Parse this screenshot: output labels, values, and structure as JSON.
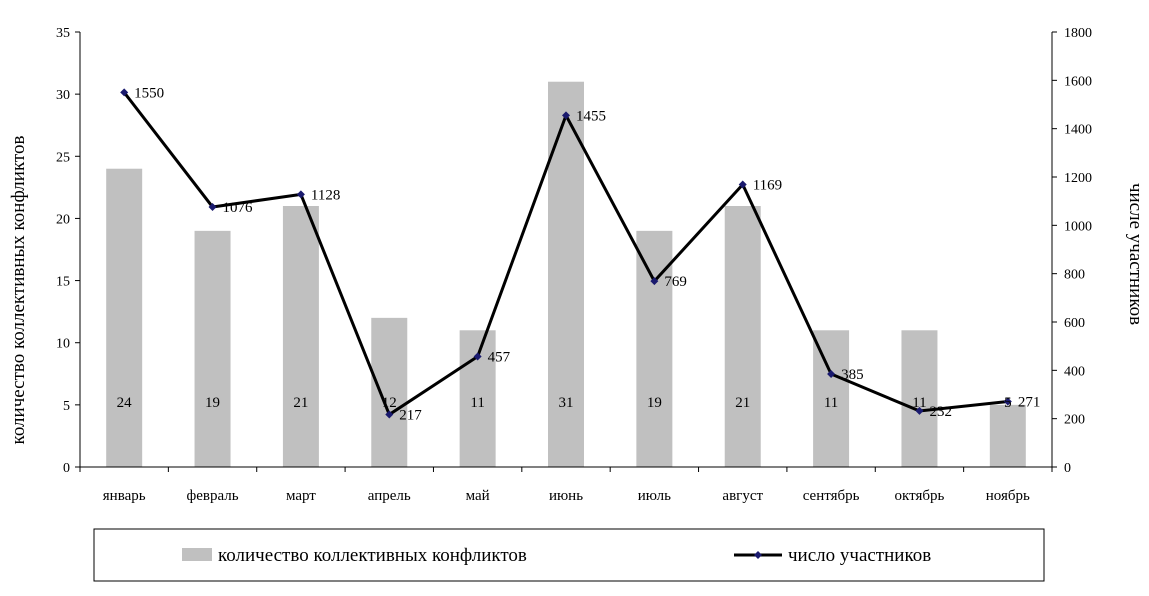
{
  "chart_data": {
    "type": "bar+line",
    "categories": [
      "январь",
      "февраль",
      "март",
      "апрель",
      "май",
      "июнь",
      "июль",
      "август",
      "сентябрь",
      "октябрь",
      "ноябрь"
    ],
    "series": [
      {
        "name": "количество коллективных конфликтов",
        "type": "bar",
        "axis": "left",
        "color": "#c0c0c0",
        "values": [
          24,
          19,
          21,
          12,
          11,
          31,
          19,
          21,
          11,
          11,
          5
        ]
      },
      {
        "name": "число участников",
        "type": "line",
        "axis": "right",
        "color": "#000000",
        "marker_color": "#1a1a6e",
        "values": [
          1550,
          1076,
          1128,
          217,
          457,
          1455,
          769,
          1169,
          385,
          232,
          271
        ]
      }
    ],
    "ylabel": "количество коллективных конфликтов",
    "y2label": "числе участников",
    "ylim": [
      0,
      35
    ],
    "y2lim": [
      0,
      1800
    ],
    "yticks": [
      0,
      5,
      10,
      15,
      20,
      25,
      30,
      35
    ],
    "y2ticks": [
      0,
      200,
      400,
      600,
      800,
      1000,
      1200,
      1400,
      1600,
      1800
    ],
    "grid": false,
    "legend": {
      "placement": "bottom",
      "entries": [
        "количество коллективных конфликтов",
        "число участников"
      ]
    }
  }
}
